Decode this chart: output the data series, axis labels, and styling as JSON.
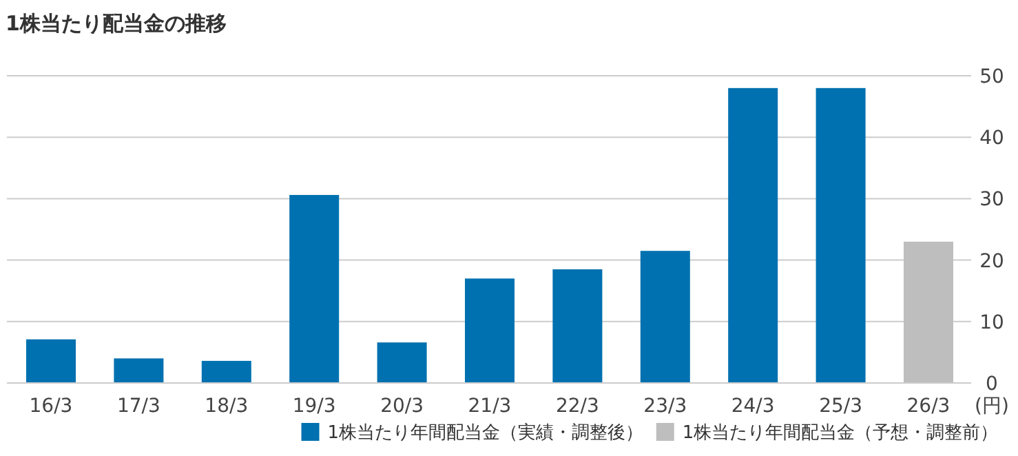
{
  "chart_data": {
    "type": "bar",
    "title": "1株当たり配当金の推移",
    "ylabel": "(円)",
    "categories": [
      "16/3",
      "17/3",
      "18/3",
      "19/3",
      "20/3",
      "21/3",
      "22/3",
      "23/3",
      "24/3",
      "25/3",
      "26/3"
    ],
    "series": [
      {
        "name": "1株当たり年間配当金（実績・調整後）",
        "color": "#0071b0",
        "values": [
          7.1,
          4.0,
          3.6,
          30.6,
          6.6,
          17.0,
          18.5,
          21.5,
          48.0,
          48.0,
          null
        ]
      },
      {
        "name": "1株当たり年間配当金（予想・調整前）",
        "color": "#bebebe",
        "values": [
          null,
          null,
          null,
          null,
          null,
          null,
          null,
          null,
          null,
          null,
          23.0
        ]
      }
    ],
    "ylim": [
      0,
      50
    ],
    "yticks": [
      0,
      10,
      20,
      30,
      40,
      50
    ],
    "grid": "y",
    "legend": "bottom right"
  }
}
